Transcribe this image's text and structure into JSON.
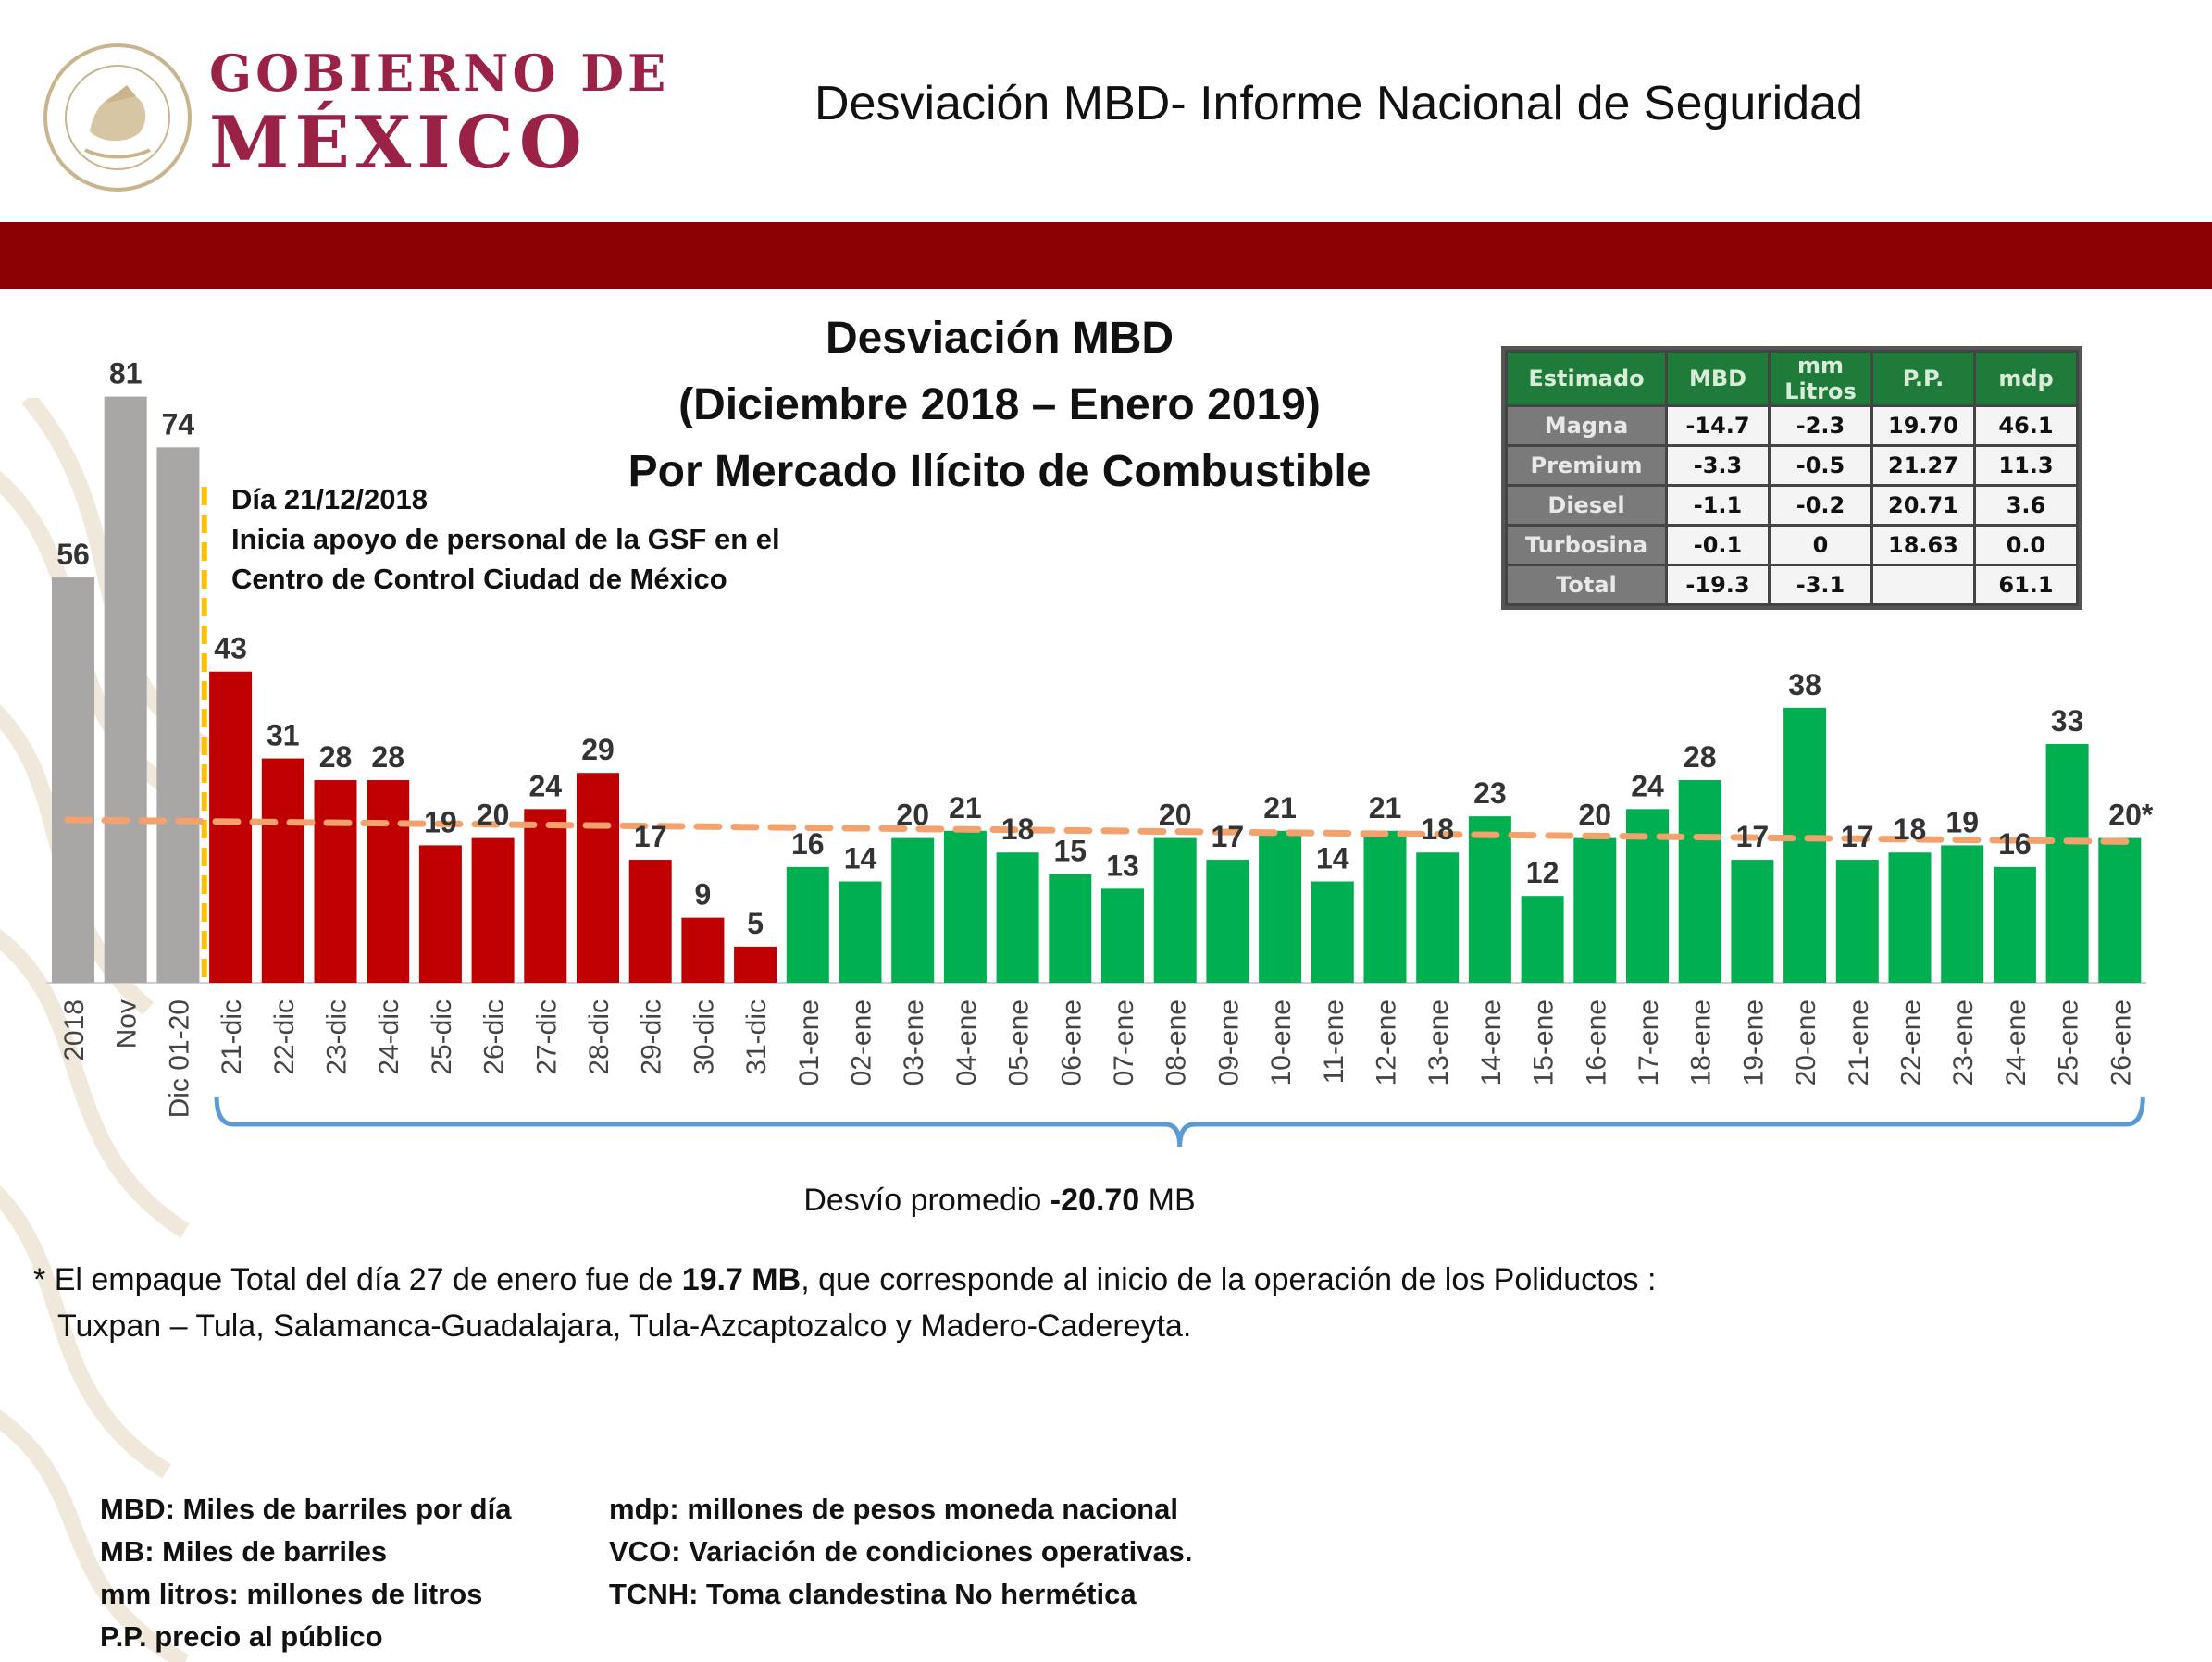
{
  "header": {
    "logo_line1": "GOBIERNO DE",
    "logo_line2": "MÉXICO",
    "slide_title": "Desviación MBD- Informe Nacional de Seguridad",
    "band_color": "#8b0000",
    "brand_color": "#9b2247"
  },
  "chart_title_lines": [
    "Desviación MBD",
    "(Diciembre 2018 – Enero 2019)",
    "Por Mercado Ilícito de Combustible"
  ],
  "annotation": {
    "lines": [
      "Día 21/12/2018",
      "Inicia apoyo de personal de la GSF en el",
      "Centro de Control Ciudad de México"
    ]
  },
  "table": {
    "headers": [
      "Estimado",
      "MBD",
      "mm Litros",
      "P.P.",
      "mdp"
    ],
    "rows": [
      [
        "Magna",
        "-14.7",
        "-2.3",
        "19.70",
        "46.1"
      ],
      [
        "Premium",
        "-3.3",
        "-0.5",
        "21.27",
        "11.3"
      ],
      [
        "Diesel",
        "-1.1",
        "-0.2",
        "20.71",
        "3.6"
      ],
      [
        "Turbosina",
        "-0.1",
        "0",
        "18.63",
        "0.0"
      ],
      [
        "Total",
        "-19.3",
        "-3.1",
        "",
        "61.1"
      ]
    ]
  },
  "average": {
    "prefix": "Desvío promedio ",
    "value": "-20.70",
    "suffix": " MB"
  },
  "footnote": {
    "star": "*",
    "line1_pre": "El empaque Total del día 27 de enero fue de ",
    "line1_bold": "19.7 MB",
    "line1_post": ", que corresponde al inicio de la operación de los Poliductos :",
    "line2": "Tuxpan – Tula, Salamanca-Guadalajara, Tula-Azcaptozalco y  Madero-Cadereyta."
  },
  "glossary": {
    "left": [
      "MBD: Miles de barriles por día",
      "MB: Miles de barriles",
      "mm litros: millones de litros",
      "P.P. precio al público"
    ],
    "right": [
      "mdp: millones de pesos moneda nacional",
      "VCO: Variación de condiciones operativas.",
      "TCNH: Toma clandestina No hermética"
    ]
  },
  "chart_data": {
    "type": "bar",
    "categories": [
      "2018",
      "Nov",
      "Dic 01-20",
      "21-dic",
      "22-dic",
      "23-dic",
      "24-dic",
      "25-dic",
      "26-dic",
      "27-dic",
      "28-dic",
      "29-dic",
      "30-dic",
      "31-dic",
      "01-ene",
      "02-ene",
      "03-ene",
      "04-ene",
      "05-ene",
      "06-ene",
      "07-ene",
      "08-ene",
      "09-ene",
      "10-ene",
      "11-ene",
      "12-ene",
      "13-ene",
      "14-ene",
      "15-ene",
      "16-ene",
      "17-ene",
      "18-ene",
      "19-ene",
      "20-ene",
      "21-ene",
      "22-ene",
      "23-ene",
      "24-ene",
      "25-ene",
      "26-ene"
    ],
    "values": [
      56,
      81,
      74,
      43,
      31,
      28,
      28,
      19,
      20,
      24,
      29,
      17,
      9,
      5,
      16,
      14,
      20,
      21,
      18,
      15,
      13,
      20,
      17,
      21,
      14,
      21,
      18,
      23,
      12,
      20,
      24,
      28,
      17,
      38,
      17,
      18,
      19,
      16,
      33,
      20
    ],
    "value_labels": [
      "56",
      "81",
      "74",
      "43",
      "31",
      "28",
      "28",
      "19",
      "20",
      "24",
      "29",
      "17",
      "9",
      "5",
      "16",
      "14",
      "20",
      "21",
      "18",
      "15",
      "13",
      "20",
      "17",
      "21",
      "14",
      "21",
      "18",
      "23",
      "12",
      "20",
      "24",
      "28",
      "17",
      "38",
      "17",
      "18",
      "19",
      "16",
      "33",
      "20*"
    ],
    "bar_colors": {
      "gray": "#a9a6a6",
      "red": "#c00000",
      "green": "#00b050"
    },
    "color_groups": {
      "gray_count": 3,
      "red_count": 11,
      "green_count": 26
    },
    "trendline": {
      "style": "dashed",
      "color": "#f4a26d",
      "start": 22.5,
      "end": 19.5
    },
    "marker_line_color": "#ffc000",
    "bracket_color": "#5b9bd5",
    "ylim": [
      0,
      81
    ],
    "grid": false,
    "title": "Desviación MBD (Diciembre 2018 – Enero 2019) Por Mercado Ilícito de Combustible"
  }
}
